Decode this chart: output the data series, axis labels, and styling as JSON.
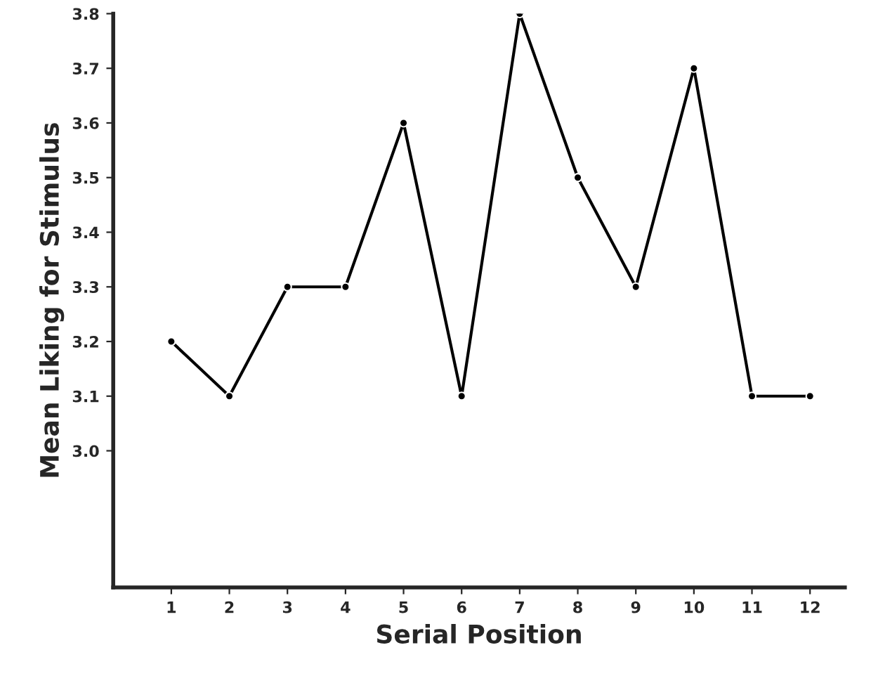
{
  "chart_data": {
    "type": "line",
    "xlabel": "Serial Position",
    "ylabel": "Mean Liking for Stimulus",
    "x": [
      1,
      2,
      3,
      4,
      5,
      6,
      7,
      8,
      9,
      10,
      11,
      12
    ],
    "series": [
      {
        "color": "#000000",
        "values": [
          3.2,
          3.1,
          3.3,
          3.3,
          3.6,
          3.1,
          3.8,
          3.5,
          3.3,
          3.7,
          3.1,
          3.1
        ]
      }
    ],
    "xlim": [
      0,
      12.6
    ],
    "xticks": [
      1,
      2,
      3,
      4,
      5,
      6,
      7,
      8,
      9,
      10,
      11,
      12
    ],
    "ylim": [
      2.75,
      3.8
    ],
    "yticks": [
      {
        "value": 3,
        "label": "3.0"
      },
      3.1,
      3.2,
      3.3,
      3.4,
      3.5,
      3.6,
      3.7,
      3.8
    ],
    "grid": false,
    "marker": "circle",
    "line_style": "solid"
  }
}
